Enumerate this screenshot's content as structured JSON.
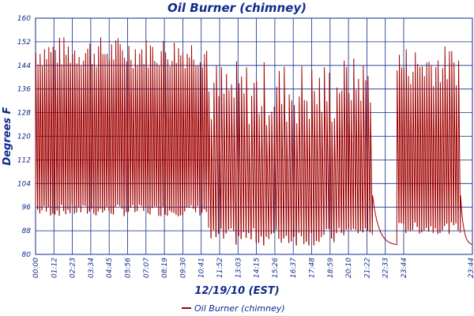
{
  "chart_data": {
    "type": "line",
    "title": "Oil Burner (chimney)",
    "xlabel": "12/19/10 (EST)",
    "ylabel": "Degrees F",
    "ylim": [
      80,
      160
    ],
    "y_ticks": [
      80,
      88,
      96,
      104,
      112,
      120,
      128,
      136,
      144,
      152,
      160
    ],
    "x_ticks": [
      "00:00",
      "01:12",
      "02:23",
      "03:34",
      "04:45",
      "05:56",
      "07:07",
      "08:19",
      "09:30",
      "10:41",
      "11:52",
      "13:03",
      "14:15",
      "15:26",
      "16:37",
      "17:48",
      "18:59",
      "20:10",
      "21:22",
      "22:33",
      "23:44",
      "23:44"
    ],
    "grid": true,
    "legend_position": "bottom",
    "series": [
      {
        "name": "Oil Burner (chimney)",
        "color": "#a00000",
        "x_range": [
          "00:00",
          "23:59"
        ],
        "segments": [
          {
            "start": "00:00",
            "end": "09:30",
            "peak_range": [
              143,
              154
            ],
            "trough_range": [
              93,
              97
            ],
            "cycles": 80
          },
          {
            "start": "09:30",
            "end": "16:40",
            "peak_range": [
              123,
              146
            ],
            "trough_range": [
              83,
              89
            ],
            "cycles": 52
          },
          {
            "start": "16:40",
            "end": "18:30",
            "peak_range": [
              130,
              147
            ],
            "trough_range": [
              86,
              90
            ],
            "cycles": 14
          },
          {
            "start": "18:30",
            "end": "19:50",
            "idle_from": 100,
            "idle_to": 83
          },
          {
            "start": "19:50",
            "end": "23:20",
            "peak_range": [
              137,
              151
            ],
            "trough_range": [
              87,
              91
            ],
            "cycles": 28
          },
          {
            "start": "23:20",
            "end": "23:59",
            "idle_from": 100,
            "idle_to": 83
          }
        ]
      }
    ]
  }
}
